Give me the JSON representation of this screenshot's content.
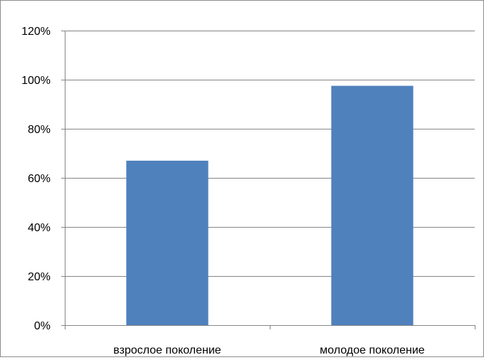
{
  "chart_data": {
    "type": "bar",
    "categories": [
      "взрослое поколение",
      "молодое поколение"
    ],
    "series": [
      {
        "values": [
          67,
          97.5
        ]
      }
    ],
    "ylim": [
      0,
      120
    ],
    "yticks": [
      0,
      20,
      40,
      60,
      80,
      100,
      120
    ],
    "ytick_format": "percent",
    "grid": true,
    "legend": false,
    "colors": {
      "bar": "#4f81bd",
      "grid": "#868686",
      "axis": "#868686"
    }
  }
}
